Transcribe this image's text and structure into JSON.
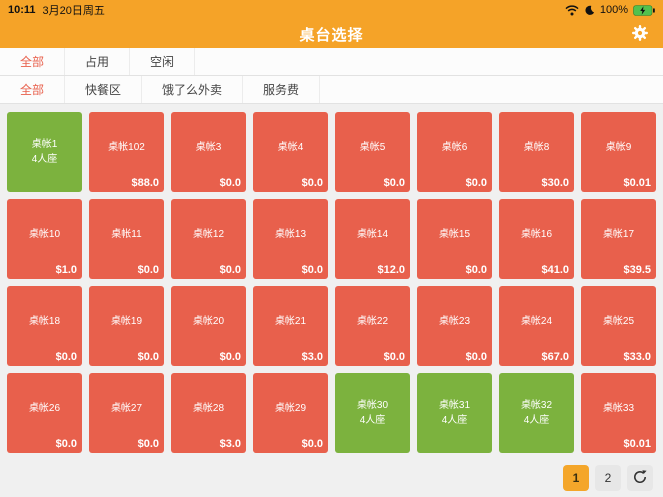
{
  "status_bar": {
    "time": "10:11",
    "date": "3月20日周五",
    "battery_percent": "100%"
  },
  "header": {
    "title": "桌台选择"
  },
  "tabs_status": [
    {
      "label": "全部",
      "selected": true
    },
    {
      "label": "占用",
      "selected": false
    },
    {
      "label": "空闲",
      "selected": false
    }
  ],
  "tabs_area": [
    {
      "label": "全部",
      "selected": true
    },
    {
      "label": "快餐区",
      "selected": false
    },
    {
      "label": "饿了么外卖",
      "selected": false
    },
    {
      "label": "服务费",
      "selected": false
    }
  ],
  "tables": [
    {
      "name": "桌帐1",
      "state": "free",
      "seats": "4人座"
    },
    {
      "name": "桌帐102",
      "state": "occupied",
      "price": "$88.0"
    },
    {
      "name": "桌帐3",
      "state": "occupied",
      "price": "$0.0"
    },
    {
      "name": "桌帐4",
      "state": "occupied",
      "price": "$0.0"
    },
    {
      "name": "桌帐5",
      "state": "occupied",
      "price": "$0.0"
    },
    {
      "name": "桌帐6",
      "state": "occupied",
      "price": "$0.0"
    },
    {
      "name": "桌帐8",
      "state": "occupied",
      "price": "$30.0"
    },
    {
      "name": "桌帐9",
      "state": "occupied",
      "price": "$0.01"
    },
    {
      "name": "桌帐10",
      "state": "occupied",
      "price": "$1.0"
    },
    {
      "name": "桌帐11",
      "state": "occupied",
      "price": "$0.0"
    },
    {
      "name": "桌帐12",
      "state": "occupied",
      "price": "$0.0"
    },
    {
      "name": "桌帐13",
      "state": "occupied",
      "price": "$0.0"
    },
    {
      "name": "桌帐14",
      "state": "occupied",
      "price": "$12.0"
    },
    {
      "name": "桌帐15",
      "state": "occupied",
      "price": "$0.0"
    },
    {
      "name": "桌帐16",
      "state": "occupied",
      "price": "$41.0"
    },
    {
      "name": "桌帐17",
      "state": "occupied",
      "price": "$39.5"
    },
    {
      "name": "桌帐18",
      "state": "occupied",
      "price": "$0.0"
    },
    {
      "name": "桌帐19",
      "state": "occupied",
      "price": "$0.0"
    },
    {
      "name": "桌帐20",
      "state": "occupied",
      "price": "$0.0"
    },
    {
      "name": "桌帐21",
      "state": "occupied",
      "price": "$3.0"
    },
    {
      "name": "桌帐22",
      "state": "occupied",
      "price": "$0.0"
    },
    {
      "name": "桌帐23",
      "state": "occupied",
      "price": "$0.0"
    },
    {
      "name": "桌帐24",
      "state": "occupied",
      "price": "$67.0"
    },
    {
      "name": "桌帐25",
      "state": "occupied",
      "price": "$33.0"
    },
    {
      "name": "桌帐26",
      "state": "occupied",
      "price": "$0.0"
    },
    {
      "name": "桌帐27",
      "state": "occupied",
      "price": "$0.0"
    },
    {
      "name": "桌帐28",
      "state": "occupied",
      "price": "$3.0"
    },
    {
      "name": "桌帐29",
      "state": "occupied",
      "price": "$0.0"
    },
    {
      "name": "桌帐30",
      "state": "free",
      "seats": "4人座"
    },
    {
      "name": "桌帐31",
      "state": "free",
      "seats": "4人座"
    },
    {
      "name": "桌帐32",
      "state": "free",
      "seats": "4人座"
    },
    {
      "name": "桌帐33",
      "state": "occupied",
      "price": "$0.01"
    }
  ],
  "pagination": {
    "pages": [
      {
        "label": "1",
        "active": true
      },
      {
        "label": "2",
        "active": false
      }
    ]
  },
  "icons": {
    "status": [
      "wifi-icon",
      "moon-icon",
      "battery-icon"
    ],
    "header": "gear-icon",
    "footer": "refresh-icon"
  },
  "colors": {
    "accent_orange": "#F5A328",
    "occupied_red": "#E8604C",
    "free_green": "#7CB23E",
    "selected_tab_red": "#E8604C",
    "pagination_active": "#F4A62A"
  }
}
